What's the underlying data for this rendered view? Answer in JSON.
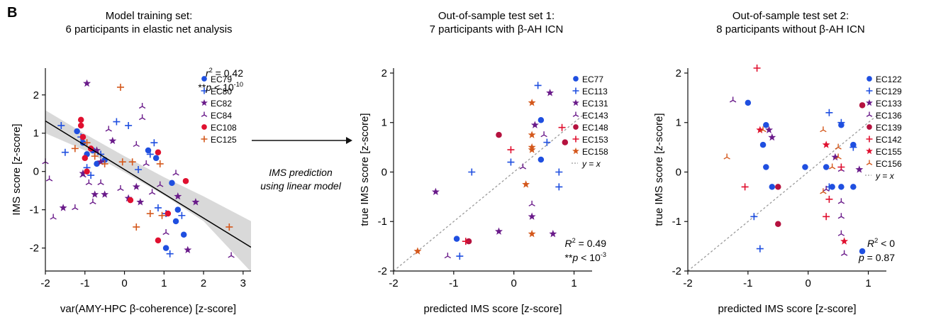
{
  "figure_label": "B",
  "arrow_text": [
    "IMS prediction",
    "using linear model"
  ],
  "colors": {
    "blue": "#1f4fe0",
    "purple": "#6a1b8a",
    "red": "#e0102f",
    "orange": "#d4581c",
    "crimson": "#b5123f",
    "black": "#111111",
    "identity_line": "#9a9a9a",
    "confidence_band": "#d9d9d9"
  },
  "chart_data": [
    {
      "type": "scatter",
      "title": [
        "Model training set:",
        "6 participants in elastic net analysis"
      ],
      "xlabel": "var(AMY-HPC β-coherence) [z-score]",
      "ylabel": "IMS score [z-score]",
      "xlim": [
        -2,
        3.2
      ],
      "ylim": [
        -2.6,
        2.7
      ],
      "xticks": [
        "-2",
        "-1",
        "0",
        "1",
        "2",
        "3"
      ],
      "yticks": [
        "-2",
        "-1",
        "0",
        "1",
        "2"
      ],
      "grid": false,
      "legend_position": "top-right",
      "stat_lines": [
        {
          "parts": [
            [
              "r",
              "ital"
            ],
            [
              "2",
              "sup"
            ],
            [
              " = 0.42",
              ""
            ]
          ]
        },
        {
          "parts": [
            [
              "**",
              ""
            ],
            [
              "p",
              "ital"
            ],
            [
              " < 10",
              ""
            ],
            [
              "-10",
              "sup"
            ]
          ]
        }
      ],
      "fit_line": {
        "x": [
          -2,
          3.2
        ],
        "y": [
          1.32,
          -1.98
        ]
      },
      "confidence_band": {
        "x": [
          -2,
          -1,
          0,
          1,
          2,
          3.2
        ],
        "upper": [
          1.6,
          0.98,
          0.4,
          -0.15,
          -0.65,
          -1.3
        ],
        "lower": [
          1.0,
          0.55,
          -0.02,
          -0.62,
          -1.3,
          -2.62
        ]
      },
      "series": [
        {
          "name": "EC79",
          "marker": "circle",
          "color": "blue",
          "points": [
            [
              -1.2,
              1.05
            ],
            [
              -1.05,
              0.75
            ],
            [
              -0.95,
              0.45
            ],
            [
              -0.8,
              0.55
            ],
            [
              -0.7,
              0.2
            ],
            [
              -0.5,
              0.3
            ],
            [
              0.6,
              0.55
            ],
            [
              0.8,
              0.35
            ],
            [
              1.2,
              -0.3
            ],
            [
              1.3,
              -1.3
            ],
            [
              1.05,
              -2.0
            ],
            [
              1.35,
              -1.0
            ],
            [
              1.5,
              -1.65
            ]
          ]
        },
        {
          "name": "EC80",
          "marker": "plus",
          "color": "blue",
          "points": [
            [
              -1.6,
              1.2
            ],
            [
              -1.5,
              0.5
            ],
            [
              -1.1,
              0.9
            ],
            [
              -0.95,
              0.1
            ],
            [
              -0.85,
              -0.1
            ],
            [
              -0.6,
              0.45
            ],
            [
              -0.2,
              1.3
            ],
            [
              0.1,
              1.2
            ],
            [
              0.35,
              0.05
            ],
            [
              0.65,
              0.45
            ],
            [
              0.75,
              0.75
            ],
            [
              0.85,
              -0.95
            ],
            [
              1.05,
              -1.1
            ],
            [
              1.15,
              -2.15
            ],
            [
              1.45,
              -1.15
            ]
          ]
        },
        {
          "name": "EC82",
          "marker": "star",
          "color": "purple",
          "points": [
            [
              -1.55,
              -0.95
            ],
            [
              -1.05,
              -0.05
            ],
            [
              -0.95,
              2.3
            ],
            [
              -0.75,
              -0.6
            ],
            [
              -0.7,
              0.55
            ],
            [
              -0.5,
              -0.6
            ],
            [
              -0.3,
              0.8
            ],
            [
              0.1,
              -0.7
            ],
            [
              0.3,
              -0.4
            ],
            [
              0.4,
              -0.8
            ],
            [
              1.35,
              -0.65
            ],
            [
              1.8,
              -0.8
            ],
            [
              1.6,
              -2.05
            ],
            [
              -0.6,
              0.25
            ]
          ]
        },
        {
          "name": "EC84",
          "marker": "tri",
          "color": "purple",
          "points": [
            [
              -2,
              0.25
            ],
            [
              -1.9,
              -0.2
            ],
            [
              -1.8,
              -1.2
            ],
            [
              -1.25,
              -0.95
            ],
            [
              -1.05,
              -0.1
            ],
            [
              -0.9,
              -0.3
            ],
            [
              -0.8,
              -0.8
            ],
            [
              -0.6,
              -0.3
            ],
            [
              -0.4,
              1.1
            ],
            [
              -0.1,
              -0.45
            ],
            [
              0.3,
              0.7
            ],
            [
              0.45,
              1.4
            ],
            [
              0.55,
              0.2
            ],
            [
              0.7,
              -0.55
            ],
            [
              0.9,
              -0.35
            ],
            [
              1.05,
              -1.6
            ],
            [
              1.3,
              -0.05
            ],
            [
              0.45,
              1.7
            ],
            [
              2.7,
              -2.2
            ]
          ]
        },
        {
          "name": "EC108",
          "marker": "circle",
          "color": "red",
          "points": [
            [
              -1.1,
              1.35
            ],
            [
              -1.1,
              1.2
            ],
            [
              -1.05,
              0.9
            ],
            [
              -1.0,
              0.35
            ],
            [
              -0.85,
              0.6
            ],
            [
              0.15,
              -0.75
            ],
            [
              0.85,
              -1.8
            ],
            [
              0.85,
              0.5
            ],
            [
              1.1,
              -1.1
            ],
            [
              1.55,
              -0.25
            ],
            [
              -0.95,
              0.0
            ]
          ]
        },
        {
          "name": "EC125",
          "marker": "plus",
          "color": "orange",
          "points": [
            [
              -1.25,
              0.6
            ],
            [
              -0.95,
              0.75
            ],
            [
              -0.75,
              0.4
            ],
            [
              -0.5,
              0.2
            ],
            [
              -0.1,
              2.2
            ],
            [
              -0.05,
              0.25
            ],
            [
              0.2,
              0.25
            ],
            [
              0.3,
              -1.45
            ],
            [
              0.65,
              -1.1
            ],
            [
              0.95,
              -1.15
            ],
            [
              0.9,
              0.2
            ],
            [
              2.65,
              -1.45
            ]
          ]
        }
      ]
    },
    {
      "type": "scatter",
      "title": [
        "Out-of-sample test set 1:",
        "7 participants with β-AH ICN"
      ],
      "xlabel": "predicted IMS score [z-score]",
      "ylabel": "true IMS score [z-score]",
      "xlim": [
        -2,
        1.3
      ],
      "ylim": [
        -2,
        2.1
      ],
      "xticks": [
        "-2",
        "-1",
        "0",
        "1"
      ],
      "yticks": [
        "-2",
        "-1",
        "0",
        "1",
        "2"
      ],
      "grid": false,
      "legend_position": "top-right",
      "identity_label": [
        "y",
        " = ",
        "x"
      ],
      "stat_lines": [
        {
          "parts": [
            [
              "R",
              "ital"
            ],
            [
              "2",
              "sup"
            ],
            [
              " = 0.49",
              ""
            ]
          ]
        },
        {
          "parts": [
            [
              "**",
              ""
            ],
            [
              "p",
              "ital"
            ],
            [
              " < 10",
              ""
            ],
            [
              "-3",
              "sup"
            ]
          ]
        }
      ],
      "series": [
        {
          "name": "EC77",
          "marker": "circle",
          "color": "blue",
          "points": [
            [
              0.45,
              1.05
            ],
            [
              0.45,
              0.25
            ],
            [
              -0.95,
              -1.35
            ]
          ]
        },
        {
          "name": "EC113",
          "marker": "plus",
          "color": "blue",
          "points": [
            [
              0.4,
              1.75
            ],
            [
              0.55,
              0.6
            ],
            [
              0.75,
              0.0
            ],
            [
              0.75,
              -0.3
            ],
            [
              -0.7,
              0.0
            ],
            [
              -0.05,
              0.2
            ],
            [
              -0.9,
              -1.7
            ]
          ]
        },
        {
          "name": "EC131",
          "marker": "star",
          "color": "purple",
          "points": [
            [
              -1.3,
              -0.4
            ],
            [
              0.6,
              1.6
            ],
            [
              0.35,
              0.95
            ],
            [
              0.3,
              -0.9
            ],
            [
              -0.25,
              -1.2
            ],
            [
              0.65,
              -1.25
            ]
          ]
        },
        {
          "name": "EC143",
          "marker": "tri",
          "color": "purple",
          "points": [
            [
              -1.1,
              -1.7
            ],
            [
              0.5,
              0.75
            ],
            [
              0.15,
              0.1
            ],
            [
              0.3,
              -0.65
            ]
          ]
        },
        {
          "name": "EC148",
          "marker": "circle",
          "color": "crimson",
          "points": [
            [
              -0.25,
              0.75
            ],
            [
              0.85,
              0.6
            ],
            [
              -0.75,
              -1.4
            ]
          ]
        },
        {
          "name": "EC153",
          "marker": "plus",
          "color": "red",
          "points": [
            [
              0.8,
              0.9
            ],
            [
              -0.05,
              0.45
            ],
            [
              -0.8,
              -1.4
            ]
          ]
        },
        {
          "name": "EC158",
          "marker": "star",
          "color": "orange",
          "points": [
            [
              0.3,
              1.4
            ],
            [
              0.3,
              0.75
            ],
            [
              0.3,
              0.45
            ],
            [
              0.3,
              0.5
            ],
            [
              0.2,
              -0.25
            ],
            [
              0.3,
              -1.25
            ],
            [
              -1.6,
              -1.6
            ]
          ]
        }
      ]
    },
    {
      "type": "scatter",
      "title": [
        "Out-of-sample test set 2:",
        "8 participants without β-AH ICN"
      ],
      "xlabel": "predicted IMS score [z-score]",
      "ylabel": "true IMS score [z-score]",
      "xlim": [
        -2,
        1.3
      ],
      "ylim": [
        -2,
        2.1
      ],
      "xticks": [
        "-2",
        "-1",
        "0",
        "1"
      ],
      "yticks": [
        "-2",
        "-1",
        "0",
        "1",
        "2"
      ],
      "grid": false,
      "legend_position": "top-right",
      "identity_label": [
        "y",
        " = ",
        "x"
      ],
      "stat_lines": [
        {
          "parts": [
            [
              "R",
              "ital"
            ],
            [
              "2",
              "sup"
            ],
            [
              " < 0",
              ""
            ]
          ]
        },
        {
          "parts": [
            [
              "p",
              "ital"
            ],
            [
              " = 0.87",
              ""
            ]
          ]
        }
      ],
      "series": [
        {
          "name": "EC122",
          "marker": "circle",
          "color": "blue",
          "points": [
            [
              -1.0,
              1.4
            ],
            [
              -0.7,
              0.95
            ],
            [
              -0.75,
              0.55
            ],
            [
              -0.7,
              0.1
            ],
            [
              -0.6,
              -0.3
            ],
            [
              -0.05,
              0.1
            ],
            [
              0.3,
              0.1
            ],
            [
              0.4,
              -0.3
            ],
            [
              0.55,
              -0.3
            ],
            [
              0.75,
              -0.3
            ],
            [
              0.55,
              0.95
            ],
            [
              0.75,
              0.55
            ],
            [
              0.9,
              -1.6
            ]
          ]
        },
        {
          "name": "EC129",
          "marker": "plus",
          "color": "blue",
          "points": [
            [
              0.35,
              1.2
            ],
            [
              0.55,
              1.0
            ],
            [
              0.75,
              0.5
            ],
            [
              -0.9,
              -0.9
            ],
            [
              -0.8,
              -1.55
            ],
            [
              0.35,
              -0.3
            ]
          ]
        },
        {
          "name": "EC133",
          "marker": "star",
          "color": "purple",
          "points": [
            [
              -0.65,
              0.85
            ],
            [
              -0.6,
              0.7
            ],
            [
              0.45,
              0.3
            ],
            [
              0.85,
              0.05
            ]
          ]
        },
        {
          "name": "EC136",
          "marker": "tri",
          "color": "purple",
          "points": [
            [
              -1.25,
              1.45
            ],
            [
              0.3,
              -0.35
            ],
            [
              0.55,
              0.05
            ],
            [
              0.55,
              -0.6
            ],
            [
              0.55,
              -0.9
            ],
            [
              0.55,
              -1.25
            ],
            [
              0.6,
              -1.65
            ]
          ]
        },
        {
          "name": "EC139",
          "marker": "circle",
          "color": "crimson",
          "points": [
            [
              0.9,
              1.35
            ],
            [
              -0.5,
              -0.3
            ],
            [
              -0.5,
              -1.05
            ]
          ]
        },
        {
          "name": "EC142",
          "marker": "plus",
          "color": "red",
          "points": [
            [
              -0.85,
              2.1
            ],
            [
              -1.05,
              -0.3
            ],
            [
              0.3,
              -0.9
            ],
            [
              0.35,
              -0.55
            ],
            [
              0.55,
              0.1
            ]
          ]
        },
        {
          "name": "EC155",
          "marker": "star",
          "color": "red",
          "points": [
            [
              -0.8,
              0.85
            ],
            [
              0.3,
              0.55
            ],
            [
              0.6,
              -1.4
            ]
          ]
        },
        {
          "name": "EC156",
          "marker": "tri",
          "color": "orange",
          "points": [
            [
              -1.35,
              0.3
            ],
            [
              -0.75,
              0.85
            ],
            [
              0.25,
              0.85
            ],
            [
              0.5,
              0.5
            ],
            [
              0.5,
              0.3
            ],
            [
              0.4,
              0.1
            ],
            [
              0.25,
              -0.4
            ]
          ]
        }
      ]
    }
  ]
}
